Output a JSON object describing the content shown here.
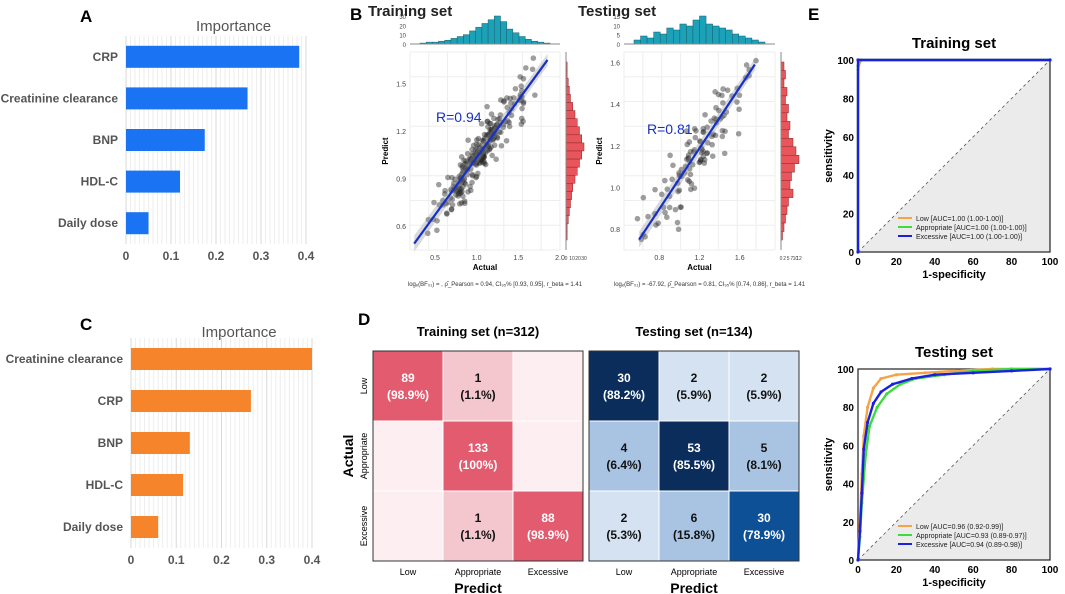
{
  "colors": {
    "blue_bar": "#1a73f2",
    "orange_bar": "#f5842a",
    "teal_hist": "#1ba1b8",
    "red_hist": "#e8555b",
    "fit_line": "#1530c8",
    "roc_low": "#f5a347",
    "roc_appropriate": "#3ddc3d",
    "roc_excessive": "#1b1fe0",
    "cm_red_strong": "#e25b6f",
    "cm_red_mid": "#f4c7cf",
    "cm_red_light": "#fdeff1",
    "cm_blue_dark": "#0a2d5c",
    "cm_blue_mid": "#0d5096",
    "cm_blue_light": "#a9c4e3",
    "cm_blue_pale": "#d4e2f2"
  },
  "chart_data": [
    {
      "panel": "A",
      "type": "bar",
      "orientation": "horizontal",
      "title": "Importance",
      "categories": [
        "CRP",
        "Creatinine clearance",
        "BNP",
        "HDL-C",
        "Daily dose"
      ],
      "values": [
        0.385,
        0.27,
        0.175,
        0.12,
        0.05
      ],
      "xlim": [
        0,
        0.4
      ],
      "xticks": [
        "0",
        "0.1",
        "0.2",
        "0.3",
        "0.4"
      ]
    },
    {
      "panel": "C",
      "type": "bar",
      "orientation": "horizontal",
      "title": "Importance",
      "categories": [
        "Creatinine clearance",
        "CRP",
        "BNP",
        "HDL-C",
        "Daily dose"
      ],
      "values": [
        0.4,
        0.265,
        0.13,
        0.115,
        0.06
      ],
      "xlim": [
        0,
        0.4
      ],
      "xticks": [
        "0",
        "0.1",
        "0.2",
        "0.3",
        "0.4"
      ]
    },
    {
      "panel": "B",
      "type": "scatter",
      "title": "Training set",
      "xlabel": "Actual",
      "ylabel": "Predict",
      "annotation": "R=0.94",
      "xlim": [
        0.2,
        2.0
      ],
      "ylim": [
        0.45,
        1.7
      ],
      "xticks": [
        "0.5",
        "1.0",
        "1.5",
        "2.0"
      ],
      "yticks": [
        "0.6",
        "0.9",
        "1.2",
        "1.5"
      ],
      "fit_line": [
        [
          0.25,
          0.49
        ],
        [
          1.85,
          1.65
        ]
      ],
      "top_hist": [
        1,
        2,
        2,
        3,
        4,
        6,
        8,
        10,
        14,
        18,
        22,
        26,
        30,
        24,
        16,
        12,
        8,
        5,
        3,
        2,
        1
      ],
      "top_hist_ticks": [
        "30",
        "20",
        "10",
        "0"
      ],
      "right_hist": [
        1,
        1,
        2,
        3,
        4,
        6,
        8,
        10,
        12,
        14,
        16,
        14,
        12,
        10,
        8,
        6,
        5,
        4,
        3,
        2,
        1,
        1
      ],
      "right_hist_ticks": [
        "0",
        "10",
        "20",
        "30"
      ],
      "footnote": "logₑ(BF₀₁) = , ρ̂_Pearson = 0.94, CI₉₅% [0.93, 0.95], r_beta = 1.41"
    },
    {
      "panel": "B",
      "type": "scatter",
      "title": "Testing set",
      "xlabel": "Actual",
      "ylabel": "Predict",
      "annotation": "R=0.81",
      "xlim": [
        0.45,
        1.95
      ],
      "ylim": [
        0.7,
        1.65
      ],
      "xticks": [
        "0.8",
        "1.2",
        "1.6"
      ],
      "yticks": [
        "0.8",
        "1.0",
        "1.2",
        "1.4",
        "1.6"
      ],
      "fit_line": [
        [
          0.6,
          0.75
        ],
        [
          1.75,
          1.59
        ]
      ],
      "top_hist": [
        2,
        4,
        3,
        6,
        5,
        8,
        7,
        10,
        9,
        12,
        14,
        10,
        9,
        8,
        7,
        5,
        4,
        3,
        2,
        1
      ],
      "top_hist_ticks": [
        "15",
        "10",
        "5",
        "0"
      ],
      "right_hist": [
        2,
        3,
        2,
        4,
        3,
        5,
        4,
        6,
        5,
        8,
        10,
        12,
        9,
        7,
        6,
        8,
        5,
        4,
        3,
        2,
        1
      ],
      "right_hist_ticks": [
        "0",
        "2",
        "5",
        "7",
        "10",
        "12"
      ],
      "footnote": "logₑ(BF₀₁) = -67.92, ρ̂_Pearson = 0.81, CI₉₅% [0.74, 0.86], r_beta = 1.41"
    },
    {
      "panel": "D",
      "type": "heatmap",
      "title": "Training set (n=312)",
      "xlabel": "Predict",
      "ylabel": "Actual",
      "classes": [
        "Low",
        "Appropriate",
        "Excessive"
      ],
      "cells": [
        [
          [
            "89",
            "(98.9%)"
          ],
          [
            "1",
            "(1.1%)"
          ],
          [
            "",
            ""
          ]
        ],
        [
          [
            "",
            ""
          ],
          [
            "133",
            "(100%)"
          ],
          [
            "",
            ""
          ]
        ],
        [
          [
            "",
            ""
          ],
          [
            "1",
            "(1.1%)"
          ],
          [
            "88",
            "(98.9%)"
          ]
        ]
      ],
      "percent": [
        [
          98.9,
          1.1,
          0
        ],
        [
          0,
          100,
          0
        ],
        [
          0,
          1.1,
          98.9
        ]
      ]
    },
    {
      "panel": "D",
      "type": "heatmap",
      "title": "Testing set (n=134)",
      "xlabel": "Predict",
      "classes": [
        "Low",
        "Appropriate",
        "Excessive"
      ],
      "cells": [
        [
          [
            "30",
            "(88.2%)"
          ],
          [
            "2",
            "(5.9%)"
          ],
          [
            "2",
            "(5.9%)"
          ]
        ],
        [
          [
            "4",
            "(6.4%)"
          ],
          [
            "53",
            "(85.5%)"
          ],
          [
            "5",
            "(8.1%)"
          ]
        ],
        [
          [
            "2",
            "(5.3%)"
          ],
          [
            "6",
            "(15.8%)"
          ],
          [
            "30",
            "(78.9%)"
          ]
        ]
      ],
      "percent": [
        [
          88.2,
          5.9,
          5.9
        ],
        [
          6.4,
          85.5,
          8.1
        ],
        [
          5.3,
          15.8,
          78.9
        ]
      ]
    },
    {
      "panel": "E",
      "type": "line",
      "title": "Training set",
      "xlabel": "1-specificity",
      "ylabel": "sensitivity",
      "xlim": [
        0,
        100
      ],
      "ylim": [
        0,
        100
      ],
      "ticks": [
        "0",
        "20",
        "40",
        "60",
        "80",
        "100"
      ],
      "series": [
        {
          "name": "Low [AUC=1.00 (1.00-1.00)]",
          "points": [
            [
              0,
              0
            ],
            [
              0,
              95
            ],
            [
              1,
              99
            ],
            [
              2,
              100
            ],
            [
              100,
              100
            ]
          ]
        },
        {
          "name": "Appropriate [AUC=1.00 (1.00-1.00)]",
          "points": [
            [
              0,
              0
            ],
            [
              0,
              97
            ],
            [
              1,
              100
            ],
            [
              100,
              100
            ]
          ]
        },
        {
          "name": "Excessive [AUC=1.00 (1.00-1.00)]",
          "points": [
            [
              0,
              0
            ],
            [
              0,
              100
            ],
            [
              100,
              100
            ]
          ]
        }
      ]
    },
    {
      "panel": "E",
      "type": "line",
      "title": "Testing set",
      "xlabel": "1-specificity",
      "ylabel": "sensitivity",
      "xlim": [
        0,
        100
      ],
      "ylim": [
        0,
        100
      ],
      "ticks": [
        "0",
        "20",
        "40",
        "60",
        "80",
        "100"
      ],
      "series": [
        {
          "name": "Low [AUC=0.96 (0.92-0.99)]",
          "points": [
            [
              0,
              0
            ],
            [
              1,
              20
            ],
            [
              2,
              45
            ],
            [
              3,
              65
            ],
            [
              5,
              80
            ],
            [
              8,
              90
            ],
            [
              12,
              95
            ],
            [
              20,
              97
            ],
            [
              35,
              98
            ],
            [
              50,
              99
            ],
            [
              70,
              100
            ],
            [
              100,
              100
            ]
          ]
        },
        {
          "name": "Appropriate [AUC=0.93 (0.89-0.97)]",
          "points": [
            [
              0,
              0
            ],
            [
              1,
              12
            ],
            [
              2,
              30
            ],
            [
              4,
              55
            ],
            [
              6,
              70
            ],
            [
              10,
              80
            ],
            [
              15,
              87
            ],
            [
              22,
              92
            ],
            [
              30,
              95
            ],
            [
              45,
              97
            ],
            [
              60,
              99
            ],
            [
              80,
              100
            ],
            [
              100,
              100
            ]
          ]
        },
        {
          "name": "Excessive [AUC=0.94 (0.89-0.98)]",
          "points": [
            [
              0,
              0
            ],
            [
              1,
              15
            ],
            [
              2,
              35
            ],
            [
              3,
              58
            ],
            [
              5,
              72
            ],
            [
              8,
              82
            ],
            [
              12,
              88
            ],
            [
              18,
              92
            ],
            [
              28,
              95
            ],
            [
              40,
              97
            ],
            [
              60,
              98
            ],
            [
              80,
              99
            ],
            [
              100,
              100
            ]
          ]
        }
      ]
    }
  ],
  "panels": {
    "a": "A",
    "b": "B",
    "c": "C",
    "d": "D",
    "e": "E"
  }
}
